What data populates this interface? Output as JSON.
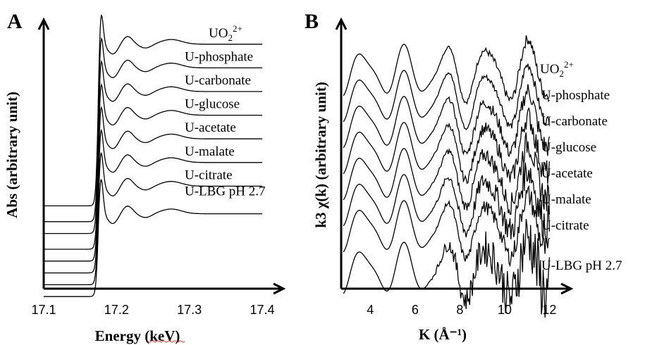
{
  "chart_data": [
    {
      "type": "line",
      "panel_label": "A",
      "xlabel": "Energy (keV)",
      "ylabel": "Abs (arbitrary unit)",
      "xlim": [
        17.1,
        17.4
      ],
      "xticks": [
        "17.1",
        "17.2",
        "17.3",
        "17.4"
      ],
      "edge_energy": 17.175,
      "series": [
        {
          "name": "UO₂²⁺",
          "label_main": "UO",
          "label_sub": "2",
          "label_sup": "2+",
          "pre_edge": 0.21,
          "post_edge": 0.62
        },
        {
          "name": "U-phosphate",
          "label_main": "U-phosphate",
          "pre_edge": 0.17,
          "post_edge": 0.56
        },
        {
          "name": "U-carbonate",
          "label_main": "U-carbonate",
          "pre_edge": 0.14,
          "post_edge": 0.5
        },
        {
          "name": "U-glucose",
          "label_main": "U-glucose",
          "pre_edge": 0.1,
          "post_edge": 0.44
        },
        {
          "name": "U-acetate",
          "label_main": "U-acetate",
          "pre_edge": 0.07,
          "post_edge": 0.38
        },
        {
          "name": "U-malate",
          "label_main": "U-malate",
          "pre_edge": 0.04,
          "post_edge": 0.32
        },
        {
          "name": "U-citrate",
          "label_main": "U-citrate",
          "pre_edge": 0.01,
          "post_edge": 0.26
        },
        {
          "name": "U-LBG pH 2.7",
          "label_main": "U-LBG pH 2.7",
          "pre_edge": -0.02,
          "post_edge": 0.19
        }
      ]
    },
    {
      "type": "line",
      "panel_label": "B",
      "xlabel": "K (Å⁻¹)",
      "ylabel": "k3 χ(k) (arbitrary unit)",
      "xlim": [
        2.7,
        12.9
      ],
      "xticks": [
        "4",
        "6",
        "8",
        "10",
        "12"
      ],
      "xtick_values": [
        4,
        6,
        8,
        10,
        12
      ],
      "k_range": [
        2.8,
        12.0
      ],
      "series": [
        {
          "name": "UO₂²⁺",
          "label_main": "UO",
          "label_sub": "2",
          "label_sup": "2+",
          "offset": 7,
          "noise": 0.3
        },
        {
          "name": "U-phosphate",
          "label_main": "U-phosphate",
          "offset": 6,
          "noise": 0.25
        },
        {
          "name": "U-carbonate",
          "label_main": "U-carbonate",
          "offset": 5,
          "noise": 0.5
        },
        {
          "name": "U-glucose",
          "label_main": "U-glucose",
          "offset": 4,
          "noise": 0.6
        },
        {
          "name": "U-acetate",
          "label_main": "U-acetate",
          "offset": 3,
          "noise": 0.7
        },
        {
          "name": "U-malate",
          "label_main": "U-malate",
          "offset": 2,
          "noise": 0.9
        },
        {
          "name": "U-citrate",
          "label_main": "U-citrate",
          "offset": 1,
          "noise": 0.6
        },
        {
          "name": "U-LBG pH 2.7",
          "label_main": "U-LBG pH 2.7",
          "offset": -0.6,
          "noise": 1.6
        }
      ]
    }
  ]
}
